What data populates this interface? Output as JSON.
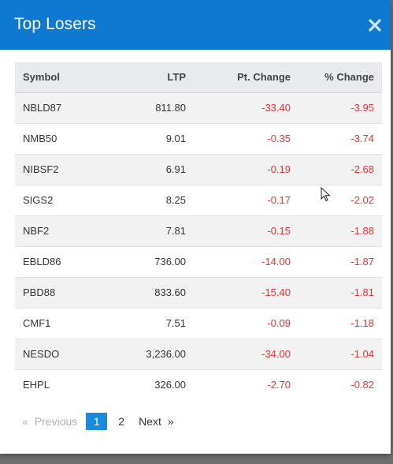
{
  "modal": {
    "title": "Top Losers",
    "close_icon": "close-icon"
  },
  "table": {
    "columns": [
      "Symbol",
      "LTP",
      "Pt. Change",
      "% Change"
    ],
    "rows": [
      {
        "symbol": "NBLD87",
        "ltp": "811.80",
        "pt_change": "-33.40",
        "pct_change": "-3.95"
      },
      {
        "symbol": "NMB50",
        "ltp": "9.01",
        "pt_change": "-0.35",
        "pct_change": "-3.74"
      },
      {
        "symbol": "NIBSF2",
        "ltp": "6.91",
        "pt_change": "-0.19",
        "pct_change": "-2.68"
      },
      {
        "symbol": "SIGS2",
        "ltp": "8.25",
        "pt_change": "-0.17",
        "pct_change": "-2.02"
      },
      {
        "symbol": "NBF2",
        "ltp": "7.81",
        "pt_change": "-0.15",
        "pct_change": "-1.88"
      },
      {
        "symbol": "EBLD86",
        "ltp": "736.00",
        "pt_change": "-14.00",
        "pct_change": "-1.87"
      },
      {
        "symbol": "PBD88",
        "ltp": "833.60",
        "pt_change": "-15.40",
        "pct_change": "-1.81"
      },
      {
        "symbol": "CMF1",
        "ltp": "7.51",
        "pt_change": "-0.09",
        "pct_change": "-1.18"
      },
      {
        "symbol": "NESDO",
        "ltp": "3,236.00",
        "pt_change": "-34.00",
        "pct_change": "-1.04"
      },
      {
        "symbol": "EHPL",
        "ltp": "326.00",
        "pt_change": "-2.70",
        "pct_change": "-0.82"
      }
    ]
  },
  "pagination": {
    "first_arrow": "«",
    "previous_label": "Previous",
    "pages": [
      "1",
      "2"
    ],
    "active_page": "1",
    "next_label": "Next",
    "last_arrow": "»"
  },
  "colors": {
    "header_bg": "#0f79d2",
    "negative": "#e0333a",
    "active_page": "#1a8ae0"
  }
}
